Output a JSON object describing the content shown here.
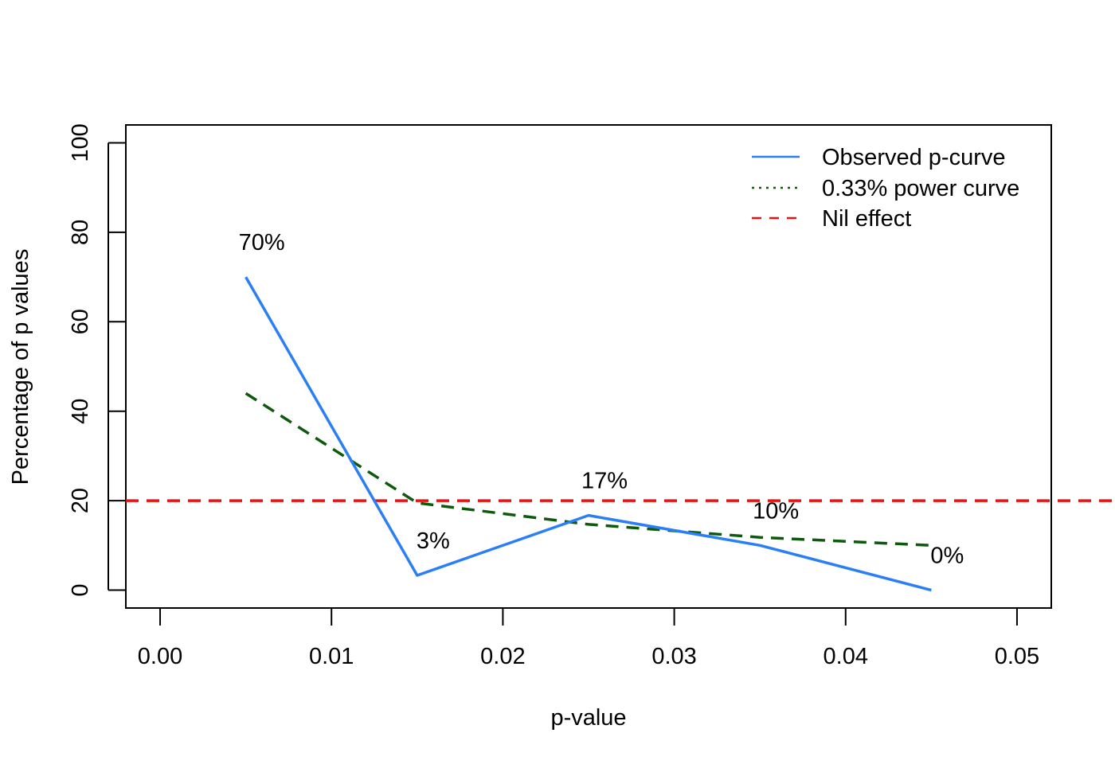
{
  "chart_data": {
    "type": "line",
    "title": "",
    "xlabel": "p-value",
    "ylabel": "Percentage of p values",
    "xlim": [
      -0.002,
      0.052
    ],
    "ylim": [
      -4,
      104
    ],
    "xticks": [
      0.0,
      0.01,
      0.02,
      0.03,
      0.04,
      0.05
    ],
    "xtick_labels": [
      "0.00",
      "0.01",
      "0.02",
      "0.03",
      "0.04",
      "0.05"
    ],
    "yticks": [
      0,
      20,
      40,
      60,
      80,
      100
    ],
    "ytick_labels": [
      "0",
      "20",
      "40",
      "60",
      "80",
      "100"
    ],
    "x": [
      0.005,
      0.015,
      0.025,
      0.035,
      0.045
    ],
    "series": [
      {
        "name": "Observed p-curve",
        "values": [
          70,
          3.3,
          16.7,
          10,
          0
        ],
        "color": "#2B7FF6",
        "style": "solid"
      },
      {
        "name": "0.33% power curve",
        "values": [
          44,
          19.5,
          14.7,
          11.8,
          10
        ],
        "color": "#0D5A0D",
        "style": "dashed",
        "legend_style": "dotted"
      },
      {
        "name": "Nil effect",
        "values": [
          20,
          20,
          20,
          20,
          20
        ],
        "color": "#EE1111",
        "style": "dashed",
        "horizontal_line": 20
      }
    ],
    "data_labels": [
      "70%",
      "3%",
      "17%",
      "10%",
      "0%"
    ],
    "grid": false,
    "legend_position": "top-right"
  }
}
